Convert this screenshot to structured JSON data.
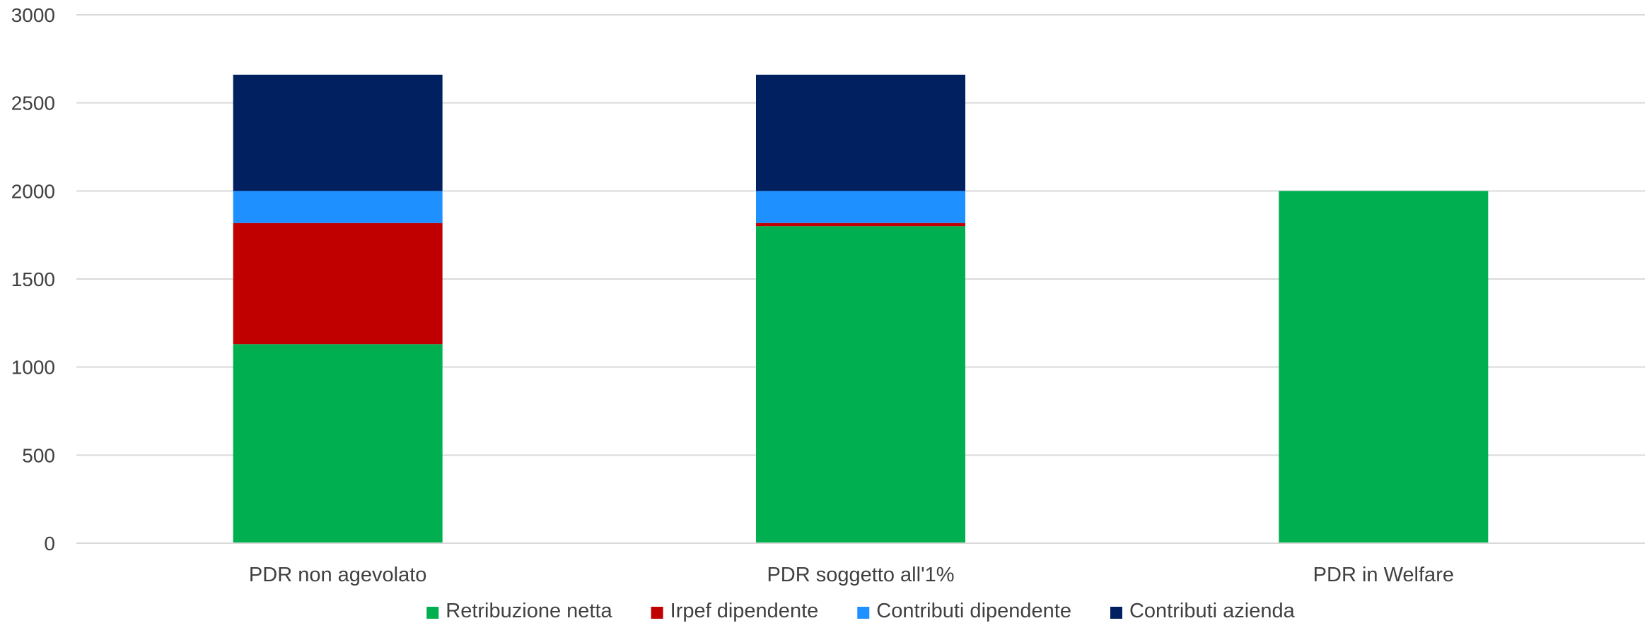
{
  "chart_data": {
    "type": "bar",
    "stacked": true,
    "categories": [
      "PDR non agevolato",
      "PDR soggetto all'1%",
      "PDR in Welfare"
    ],
    "series": [
      {
        "name": "Retribuzione netta",
        "color": "#00b050",
        "values": [
          1130,
          1800,
          2000
        ]
      },
      {
        "name": "Irpef dipendente",
        "color": "#c00000",
        "values": [
          688,
          18,
          0
        ]
      },
      {
        "name": "Contributi dipendente",
        "color": "#1e90ff",
        "values": [
          182,
          182,
          0
        ]
      },
      {
        "name": "Contributi azienda",
        "color": "#002060",
        "values": [
          660,
          660,
          0
        ]
      }
    ],
    "ylim": [
      0,
      3000
    ],
    "yticks": [
      0,
      500,
      1000,
      1500,
      2000,
      2500,
      3000
    ],
    "grid": true,
    "legend": "bottom"
  }
}
